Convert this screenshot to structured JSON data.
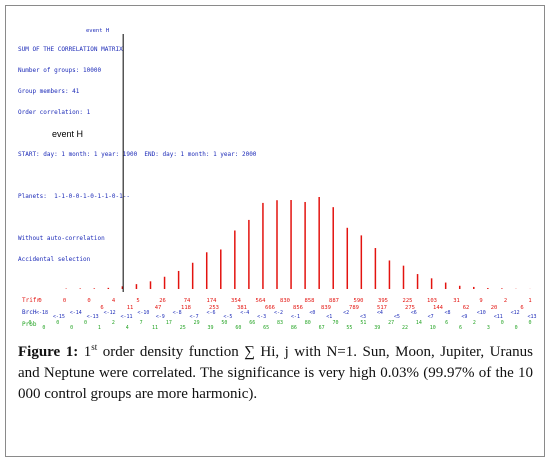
{
  "header_lines": [
    "SUM OF THE CORRELATION MATRIX",
    "Number of groups: 10000",
    "Group members: 41",
    "Order correlation: 1",
    "",
    "START: day: 1 month: 1 year: 1900  END: day: 1 month: 1 year: 2000",
    "",
    "Planets:  1-1-0-0-1-0-1-1-0-1--",
    "",
    "Without auto-correlation",
    "Accidental selection"
  ],
  "event_marker_label": "event H",
  "event_top_label": "event H",
  "row_labels": {
    "trifr": "Trifr",
    "brch": "BrcH",
    "prob": "Prob"
  },
  "chart_data": {
    "type": "bar",
    "title": "",
    "xlabel": "",
    "ylabel": "",
    "event_index": 3,
    "series": [
      {
        "name": "",
        "values": [
          0,
          0,
          0,
          4,
          5,
          6,
          11,
          26,
          47,
          74,
          118,
          174,
          253,
          354,
          381,
          564,
          666,
          830,
          856,
          858,
          839,
          887,
          789,
          590,
          517,
          395,
          275,
          225,
          144,
          103,
          62,
          31,
          20,
          9,
          6,
          2,
          1
        ]
      }
    ],
    "row1_values": [
      "0",
      "0",
      "0",
      "4",
      "5",
      "26",
      "74",
      "174",
      "354",
      "564",
      "830",
      "858",
      "887",
      "590",
      "395",
      "225",
      "103",
      "31",
      "9",
      "2",
      "1"
    ],
    "row1b_values": [
      "6",
      "11",
      "47",
      "118",
      "253",
      "381",
      "666",
      "856",
      "839",
      "789",
      "517",
      "275",
      "144",
      "62",
      "20",
      "6"
    ],
    "row2_values": [
      "<-18",
      "<-15",
      "<-14",
      "<-13",
      "<-12",
      "<-11",
      "<-10",
      "<-9",
      "<-8",
      "<-7",
      "<-6",
      "<-5",
      "<-4",
      "<-3",
      "<-2",
      "<-1",
      "<0",
      "<1",
      "<2",
      "<3",
      "<4",
      "<5",
      "<6",
      "<7",
      "<8",
      "<9",
      "<10",
      "<11",
      "<12",
      "<13"
    ],
    "row3_values": [
      "0",
      "0",
      "0",
      "0",
      "0",
      "1",
      "2",
      "4",
      "7",
      "11",
      "17",
      "25",
      "29",
      "39",
      "50",
      "60",
      "66",
      "65",
      "83",
      "86",
      "80",
      "67",
      "70",
      "55",
      "51",
      "39",
      "27",
      "22",
      "14",
      "10",
      "6",
      "6",
      "2",
      "3",
      "0",
      "0",
      "0"
    ]
  },
  "caption": {
    "figure_label": "Figure 1:",
    "order_number": "1",
    "order_suffix": "st",
    "text": " order density function ∑ Hi, j with N=1. Sun, Moon, Jupiter, Uranus and Neptune were correlated. The significance is very high 0.03% (99.97% of the 10 000 control groups are more harmonic)."
  },
  "colors": {
    "bars": "#e3130f",
    "header": "#1d2bb8",
    "row1": "#e3130f",
    "row2": "#1d2bb8",
    "row3": "#22a322",
    "marker": "#000000"
  }
}
